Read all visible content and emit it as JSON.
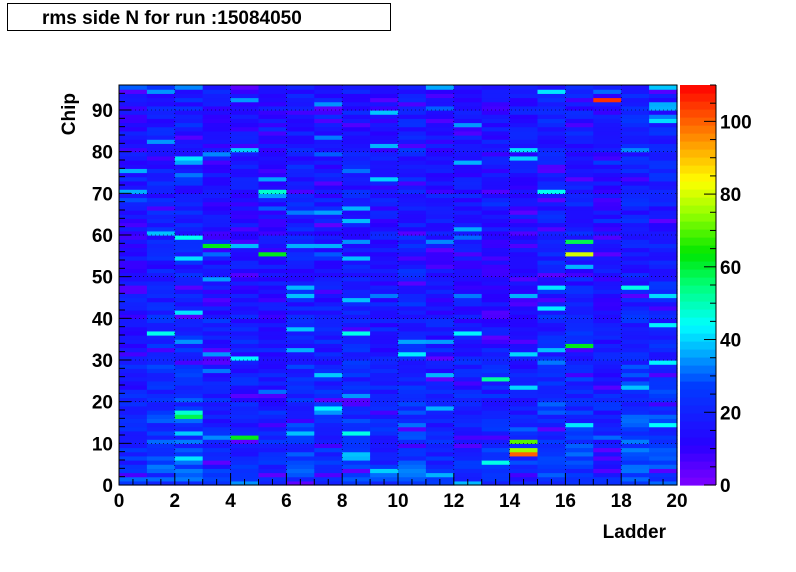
{
  "title": "rms side N for run :15084050",
  "chart_data": {
    "type": "heatmap",
    "title": "rms side N for run :15084050",
    "xlabel": "Ladder",
    "ylabel": "Chip",
    "xlim": [
      0,
      20
    ],
    "ylim": [
      0,
      96
    ],
    "x_bins": 20,
    "y_bins": 96,
    "x_ticks": [
      0,
      2,
      4,
      6,
      8,
      10,
      12,
      14,
      16,
      18,
      20
    ],
    "y_ticks": [
      0,
      10,
      20,
      30,
      40,
      50,
      60,
      70,
      80,
      90
    ],
    "z_range": [
      0,
      110
    ],
    "z_ticks": [
      0,
      20,
      40,
      60,
      80,
      100
    ],
    "grid": true,
    "colormap": "rainbow (violet-blue-cyan-green-yellow-red)",
    "cells_note": "Most cells 10-30 (blue); values increase toward cyan 30-45 in rows 0-50; hot spots listed below",
    "hotspots": [
      {
        "ladder": 17,
        "chip": 92,
        "value": 105
      },
      {
        "ladder": 3,
        "chip": 57,
        "value": 62
      },
      {
        "ladder": 5,
        "chip": 55,
        "value": 62
      },
      {
        "ladder": 16,
        "chip": 55,
        "value": 80
      },
      {
        "ladder": 16,
        "chip": 58,
        "value": 58
      },
      {
        "ladder": 16,
        "chip": 33,
        "value": 62
      },
      {
        "ladder": 13,
        "chip": 25,
        "value": 52
      },
      {
        "ladder": 14,
        "chip": 7,
        "value": 100
      },
      {
        "ladder": 14,
        "chip": 8,
        "value": 75
      },
      {
        "ladder": 14,
        "chip": 10,
        "value": 70
      },
      {
        "ladder": 2,
        "chip": 16,
        "value": 58
      },
      {
        "ladder": 4,
        "chip": 11,
        "value": 62
      },
      {
        "ladder": 5,
        "chip": 70,
        "value": 48
      },
      {
        "ladder": 15,
        "chip": 70,
        "value": 45
      },
      {
        "ladder": 2,
        "chip": 47,
        "value": 5
      },
      {
        "ladder": 7,
        "chip": 90,
        "value": 5
      },
      {
        "ladder": 9,
        "chip": 92,
        "value": 5
      },
      {
        "ladder": 16,
        "chip": 73,
        "value": 5
      },
      {
        "ladder": 18,
        "chip": 45,
        "value": 5
      }
    ],
    "seed": 15084050
  }
}
